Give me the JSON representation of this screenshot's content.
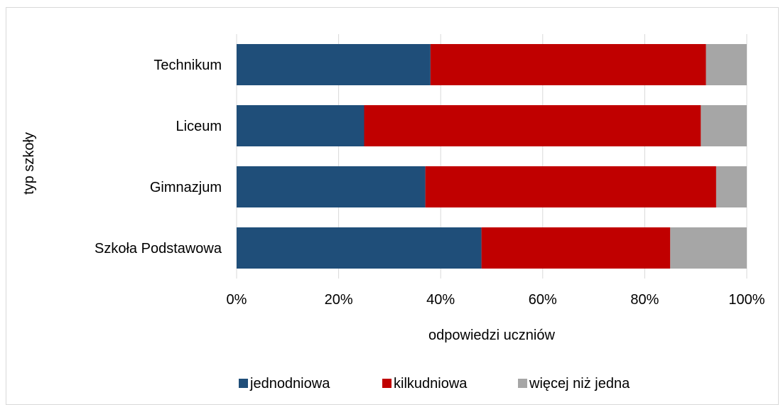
{
  "chart_data": {
    "type": "bar",
    "orientation": "horizontal",
    "stacked": "percent",
    "categories": [
      "Szkoła Podstawowa",
      "Gimnazjum",
      "Liceum",
      "Technikum"
    ],
    "series": [
      {
        "name": "jednodniowa",
        "values": [
          48,
          37,
          25,
          38
        ]
      },
      {
        "name": "kilkudniowa",
        "values": [
          37,
          57,
          66,
          54
        ]
      },
      {
        "name": "więcej niż jedna",
        "values": [
          15,
          6,
          9,
          8
        ]
      }
    ],
    "xlabel": "odpowiedzi uczniów",
    "ylabel": "typ szkoły",
    "xticks": [
      "0%",
      "20%",
      "40%",
      "60%",
      "80%",
      "100%"
    ],
    "xlim": [
      0,
      100
    ],
    "grid": true,
    "legend_position": "bottom"
  },
  "colors": {
    "jednodniowa": "#1f4e79",
    "kilkudniowa": "#c00000",
    "wiecej": "#a6a6a6",
    "grid": "#d9d9d9"
  }
}
